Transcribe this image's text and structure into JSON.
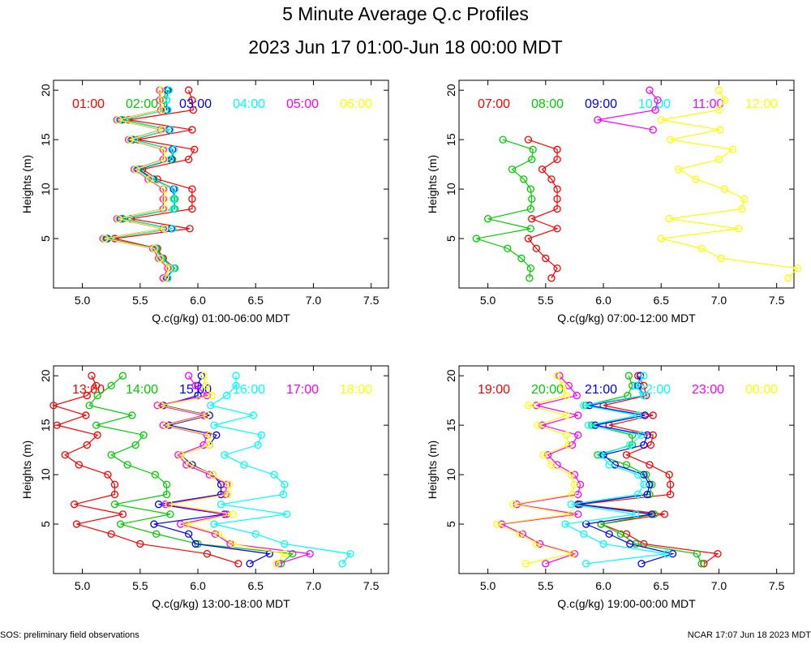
{
  "title": "5 Minute Average Q.c Profiles",
  "subtitle": "2023 Jun 17 01:00-Jun 18 00:00 MDT",
  "footer_left": "SOS: preliminary field observations",
  "footer_right": "NCAR 17:07 Jun 18 2023 MDT",
  "chart_data": [
    {
      "type": "line",
      "xlabel": "Q.c(g/kg) 01:00-06:00 MDT",
      "ylabel": "Heights (m)",
      "xlim": [
        4.75,
        7.65
      ],
      "ylim": [
        0,
        21
      ],
      "xticks": [
        "5.0",
        "5.5",
        "6.0",
        "6.5",
        "7.0",
        "7.5"
      ],
      "yticks": [
        "5",
        "10",
        "15",
        "20"
      ],
      "heights": [
        1,
        2,
        3,
        4,
        5,
        6,
        7,
        8,
        9,
        10,
        11,
        12,
        13,
        14,
        15,
        16,
        17,
        18,
        19,
        20
      ],
      "series": [
        {
          "name": "01:00",
          "color": "#ff0000",
          "values": [
            5.72,
            5.8,
            5.7,
            5.65,
            5.28,
            5.93,
            5.42,
            5.95,
            5.95,
            5.95,
            5.65,
            5.52,
            5.92,
            5.97,
            5.48,
            5.95,
            5.4,
            5.96,
            5.95,
            5.92
          ]
        },
        {
          "name": "02:00",
          "color": "#00cc00",
          "values": [
            5.73,
            5.8,
            5.69,
            5.64,
            5.22,
            5.78,
            5.35,
            5.8,
            5.8,
            5.8,
            5.62,
            5.49,
            5.78,
            5.79,
            5.44,
            5.76,
            5.35,
            5.72,
            5.7,
            5.73
          ]
        },
        {
          "name": "03:00",
          "color": "#0000ff",
          "values": [
            5.73,
            5.79,
            5.68,
            5.63,
            5.21,
            5.77,
            5.33,
            5.79,
            5.79,
            5.79,
            5.61,
            5.48,
            5.77,
            5.78,
            5.43,
            5.75,
            5.33,
            5.73,
            5.73,
            5.74
          ]
        },
        {
          "name": "04:00",
          "color": "#00ffff",
          "values": [
            5.74,
            5.79,
            5.68,
            5.63,
            5.2,
            5.78,
            5.32,
            5.79,
            5.79,
            5.8,
            5.6,
            5.47,
            5.76,
            5.79,
            5.42,
            5.76,
            5.32,
            5.74,
            5.73,
            5.75
          ]
        },
        {
          "name": "05:00",
          "color": "#ff00ff",
          "values": [
            5.7,
            5.74,
            5.66,
            5.61,
            5.18,
            5.7,
            5.3,
            5.7,
            5.7,
            5.7,
            5.57,
            5.45,
            5.7,
            5.7,
            5.4,
            5.68,
            5.3,
            5.68,
            5.67,
            5.67
          ]
        },
        {
          "name": "06:00",
          "color": "#ffff00",
          "values": [
            5.72,
            5.75,
            5.67,
            5.62,
            5.19,
            5.71,
            5.31,
            5.71,
            5.71,
            5.71,
            5.58,
            5.46,
            5.71,
            5.71,
            5.41,
            5.69,
            5.31,
            5.69,
            5.68,
            5.68
          ]
        }
      ]
    },
    {
      "type": "line",
      "xlabel": "Q.c(g/kg) 07:00-12:00 MDT",
      "ylabel": "Heights (m)",
      "xlim": [
        4.75,
        7.65
      ],
      "ylim": [
        0,
        21
      ],
      "xticks": [
        "5.0",
        "5.5",
        "6.0",
        "6.5",
        "7.0",
        "7.5"
      ],
      "yticks": [
        "5",
        "10",
        "15",
        "20"
      ],
      "heights": [
        1,
        2,
        3,
        4,
        5,
        6,
        7,
        8,
        9,
        10,
        11,
        12,
        13,
        14,
        15,
        16,
        17,
        18,
        19,
        20
      ],
      "series": [
        {
          "name": "07:00",
          "color": "#ff0000",
          "values": [
            5.55,
            5.6,
            5.5,
            5.42,
            5.35,
            5.6,
            5.38,
            5.6,
            5.6,
            5.6,
            5.55,
            5.47,
            5.6,
            5.6,
            5.35,
            null,
            null,
            null,
            null,
            null
          ]
        },
        {
          "name": "08:00",
          "color": "#00cc00",
          "values": [
            5.36,
            5.37,
            5.29,
            5.17,
            4.9,
            5.37,
            5.0,
            5.37,
            5.38,
            5.37,
            5.31,
            5.21,
            5.38,
            5.39,
            5.13,
            null,
            null,
            null,
            null,
            null
          ]
        },
        {
          "name": "09:00",
          "color": "#0000ff",
          "values": [
            null,
            null,
            null,
            null,
            null,
            null,
            null,
            null,
            null,
            null,
            null,
            null,
            null,
            null,
            null,
            null,
            null,
            null,
            null,
            null
          ]
        },
        {
          "name": "10:00",
          "color": "#00ffff",
          "values": [
            null,
            null,
            null,
            null,
            null,
            null,
            null,
            null,
            null,
            null,
            null,
            null,
            null,
            null,
            null,
            null,
            null,
            null,
            null,
            null
          ]
        },
        {
          "name": "11:00",
          "color": "#ff00ff",
          "values": [
            null,
            null,
            null,
            null,
            null,
            null,
            null,
            null,
            null,
            null,
            null,
            null,
            null,
            null,
            null,
            6.43,
            5.95,
            6.45,
            6.47,
            6.4
          ]
        },
        {
          "name": "12:00",
          "color": "#ffff00",
          "values": [
            7.6,
            7.68,
            7.02,
            6.85,
            6.5,
            7.17,
            6.57,
            7.2,
            7.22,
            7.05,
            6.8,
            6.65,
            7.0,
            7.12,
            6.58,
            7.01,
            6.5,
            7.0,
            7.05,
            7.0
          ]
        }
      ]
    },
    {
      "type": "line",
      "xlabel": "Q.c(g/kg) 13:00-18:00 MDT",
      "ylabel": "Heights (m)",
      "xlim": [
        4.75,
        7.65
      ],
      "ylim": [
        0,
        21
      ],
      "xticks": [
        "5.0",
        "5.5",
        "6.0",
        "6.5",
        "7.0",
        "7.5"
      ],
      "yticks": [
        "5",
        "10",
        "15",
        "20"
      ],
      "heights": [
        1,
        2,
        3,
        4,
        5,
        6,
        7,
        8,
        9,
        10,
        11,
        12,
        13,
        14,
        15,
        16,
        17,
        18,
        19,
        20
      ],
      "series": [
        {
          "name": "13:00",
          "color": "#ff0000",
          "values": [
            6.35,
            6.08,
            5.5,
            5.25,
            4.95,
            5.35,
            4.93,
            5.28,
            5.28,
            5.22,
            4.97,
            4.85,
            5.04,
            5.13,
            4.78,
            5.03,
            4.75,
            5.04,
            5.12,
            5.08
          ]
        },
        {
          "name": "14:00",
          "color": "#00cc00",
          "values": [
            6.72,
            6.82,
            6.0,
            5.64,
            5.33,
            5.76,
            5.28,
            5.73,
            5.73,
            5.63,
            5.39,
            5.25,
            5.46,
            5.53,
            5.12,
            5.43,
            5.06,
            5.13,
            5.25,
            5.35
          ]
        },
        {
          "name": "15:00",
          "color": "#0000ff",
          "values": [
            6.45,
            6.62,
            5.98,
            5.92,
            5.62,
            6.23,
            5.66,
            6.2,
            6.2,
            6.13,
            5.95,
            5.85,
            6.1,
            6.16,
            5.75,
            6.1,
            5.7,
            6.0,
            6.0,
            6.03
          ]
        },
        {
          "name": "16:00",
          "color": "#00ffff",
          "values": [
            7.25,
            7.32,
            6.75,
            6.5,
            6.14,
            6.77,
            6.2,
            6.74,
            6.75,
            6.66,
            6.4,
            6.23,
            6.52,
            6.55,
            6.14,
            6.48,
            6.11,
            6.25,
            6.33,
            6.33
          ]
        },
        {
          "name": "17:00",
          "color": "#ff00ff",
          "values": [
            6.7,
            6.97,
            6.28,
            6.15,
            5.85,
            6.25,
            5.72,
            6.24,
            6.25,
            6.1,
            5.9,
            5.83,
            6.05,
            6.08,
            5.7,
            6.05,
            5.65,
            6.08,
            5.98,
            5.92
          ]
        },
        {
          "name": "18:00",
          "color": "#ffff00",
          "values": [
            6.68,
            6.75,
            6.3,
            6.18,
            5.9,
            6.3,
            5.75,
            6.26,
            6.27,
            6.13,
            5.93,
            5.85,
            6.1,
            6.1,
            5.72,
            6.08,
            5.68,
            6.12,
            6.07,
            6.05
          ]
        }
      ]
    },
    {
      "type": "line",
      "xlabel": "Q.c(g/kg) 19:00-00:00 MDT",
      "ylabel": "Heights (m)",
      "xlim": [
        4.75,
        7.65
      ],
      "ylim": [
        0,
        21
      ],
      "xticks": [
        "5.0",
        "5.5",
        "6.0",
        "6.5",
        "7.0",
        "7.5"
      ],
      "yticks": [
        "5",
        "10",
        "15",
        "20"
      ],
      "heights": [
        1,
        2,
        3,
        4,
        5,
        6,
        7,
        8,
        9,
        10,
        11,
        12,
        13,
        14,
        15,
        16,
        17,
        18,
        19,
        20
      ],
      "series": [
        {
          "name": "19:00",
          "color": "#ff0000",
          "values": [
            6.87,
            6.99,
            6.35,
            6.2,
            5.98,
            6.53,
            5.8,
            6.58,
            6.58,
            6.57,
            6.4,
            6.2,
            6.41,
            6.43,
            6.05,
            6.43,
            6.0,
            6.37,
            6.35,
            6.3
          ]
        },
        {
          "name": "20:00",
          "color": "#00cc00",
          "values": [
            6.85,
            6.81,
            6.28,
            6.15,
            5.98,
            6.44,
            5.79,
            6.4,
            6.42,
            6.37,
            6.2,
            5.95,
            6.25,
            6.25,
            5.9,
            6.3,
            5.85,
            6.21,
            6.25,
            6.22
          ]
        },
        {
          "name": "21:00",
          "color": "#0000ff",
          "values": [
            6.33,
            6.6,
            6.23,
            6.05,
            5.85,
            6.42,
            5.78,
            6.38,
            6.4,
            6.35,
            6.1,
            6.0,
            6.35,
            6.38,
            5.93,
            6.36,
            5.88,
            6.35,
            6.3,
            6.32
          ]
        },
        {
          "name": "22:00",
          "color": "#00ffff",
          "values": [
            5.85,
            6.55,
            6.0,
            5.83,
            5.67,
            6.28,
            5.72,
            6.3,
            6.35,
            6.3,
            6.05,
            5.98,
            6.23,
            6.33,
            5.87,
            6.3,
            5.83,
            6.35,
            6.28,
            6.35
          ]
        },
        {
          "name": "23:00",
          "color": "#ff00ff",
          "values": [
            5.5,
            5.75,
            5.45,
            5.3,
            5.12,
            5.78,
            5.25,
            5.78,
            5.8,
            5.75,
            5.6,
            5.52,
            5.73,
            5.78,
            5.47,
            5.78,
            5.42,
            5.77,
            5.7,
            5.62
          ]
        },
        {
          "name": "00:00",
          "color": "#ffff00",
          "values": [
            5.33,
            5.73,
            5.42,
            5.28,
            5.08,
            5.72,
            5.22,
            5.73,
            5.75,
            5.72,
            5.55,
            5.48,
            5.7,
            5.68,
            5.43,
            5.68,
            5.35,
            5.68,
            5.65,
            5.6
          ]
        }
      ]
    }
  ]
}
